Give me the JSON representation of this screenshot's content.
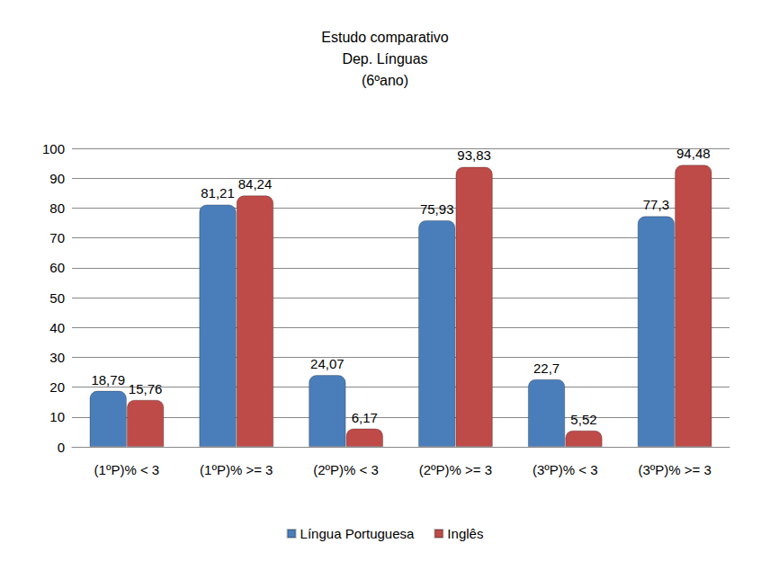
{
  "chart_data": {
    "type": "bar",
    "title": "Estudo comparativo\nDep. Línguas\n(6ºano)",
    "categories": [
      "(1ºP)% < 3",
      "(1ºP)% >= 3",
      "(2ºP)% < 3",
      "(2ºP)% >= 3",
      "(3ºP)% < 3",
      "(3ºP)% >= 3"
    ],
    "series": [
      {
        "name": "Língua Portuguesa",
        "color": "#4a7ebb",
        "values": [
          18.79,
          81.21,
          24.07,
          75.93,
          22.7,
          77.3
        ],
        "value_labels": [
          "18,79",
          "81,21",
          "24,07",
          "75,93",
          "22,7",
          "77,3"
        ]
      },
      {
        "name": "Inglês",
        "color": "#be4b48",
        "values": [
          15.76,
          84.24,
          6.17,
          93.83,
          5.52,
          94.48
        ],
        "value_labels": [
          "15,76",
          "84,24",
          "6,17",
          "93,83",
          "5,52",
          "94,48"
        ]
      }
    ],
    "ylim": [
      0,
      100
    ],
    "yticks": [
      0,
      10,
      20,
      30,
      40,
      50,
      60,
      70,
      80,
      90,
      100
    ],
    "grid": true,
    "legend": "bottom",
    "data_labels": true
  }
}
